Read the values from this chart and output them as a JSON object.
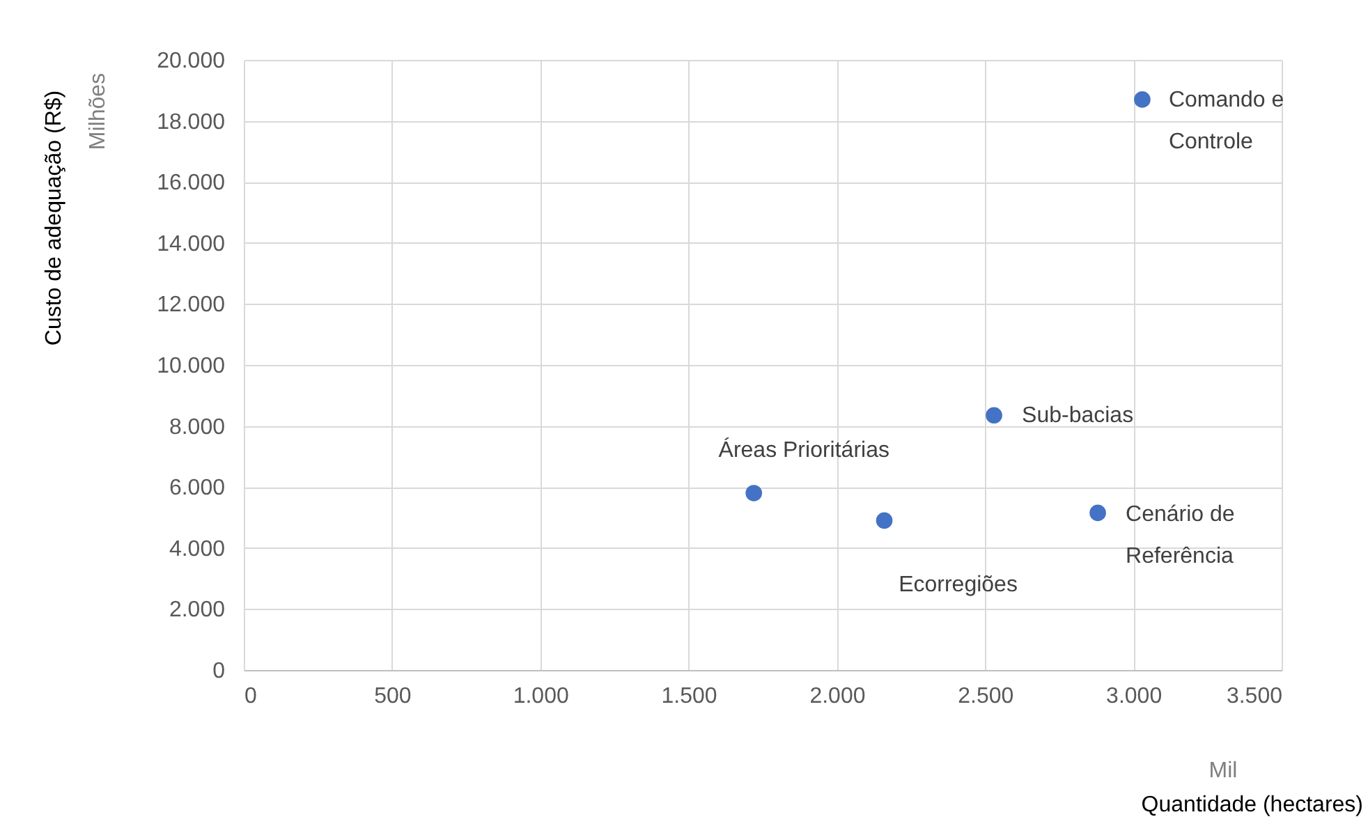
{
  "chart_data": {
    "type": "scatter",
    "xlabel": "Quantidade (hectares)",
    "ylabel": "Custo de adequação (R$)",
    "x": [
      3030,
      2530,
      1720,
      2160,
      2880
    ],
    "series": [
      {
        "color": "#4472c4",
        "values": [
          18700,
          8350,
          5800,
          4900,
          5150
        ]
      }
    ],
    "xlim": [
      0,
      3500
    ],
    "ylim": [
      0,
      20000
    ],
    "xticks": [
      0,
      500,
      {
        "value": 1000,
        "label": "1.000"
      },
      {
        "value": 1500,
        "label": "1.500"
      },
      {
        "value": 2000,
        "label": "2.000"
      },
      {
        "value": 2500,
        "label": "2.500"
      },
      {
        "value": 3000,
        "label": "3.000"
      },
      {
        "value": 3500,
        "label": "3.500"
      }
    ],
    "yticks": [
      0,
      {
        "value": 2000,
        "label": "2.000"
      },
      {
        "value": 4000,
        "label": "4.000"
      },
      {
        "value": 6000,
        "label": "6.000"
      },
      {
        "value": 8000,
        "label": "8.000"
      },
      {
        "value": 10000,
        "label": "10.000"
      },
      {
        "value": 12000,
        "label": "12.000"
      },
      {
        "value": 14000,
        "label": "14.000"
      },
      {
        "value": 16000,
        "label": "16.000"
      },
      {
        "value": 18000,
        "label": "18.000"
      },
      {
        "value": 20000,
        "label": "20.000"
      }
    ],
    "grid": true,
    "marker": "circle",
    "annotations": [
      {
        "text": "Comando e\nControle",
        "x": 3030,
        "y": 18700
      },
      {
        "text": "Sub-bacias",
        "x": 2530,
        "y": 8350
      },
      {
        "text": "Áreas Prioritárias",
        "x": 1720,
        "y": 5800
      },
      {
        "text": "Ecorregiões",
        "x": 2160,
        "y": 4900
      },
      {
        "text": "Cenário de\nReferência",
        "x": 2880,
        "y": 5150
      },
      "Milhões",
      "Mil"
    ]
  }
}
